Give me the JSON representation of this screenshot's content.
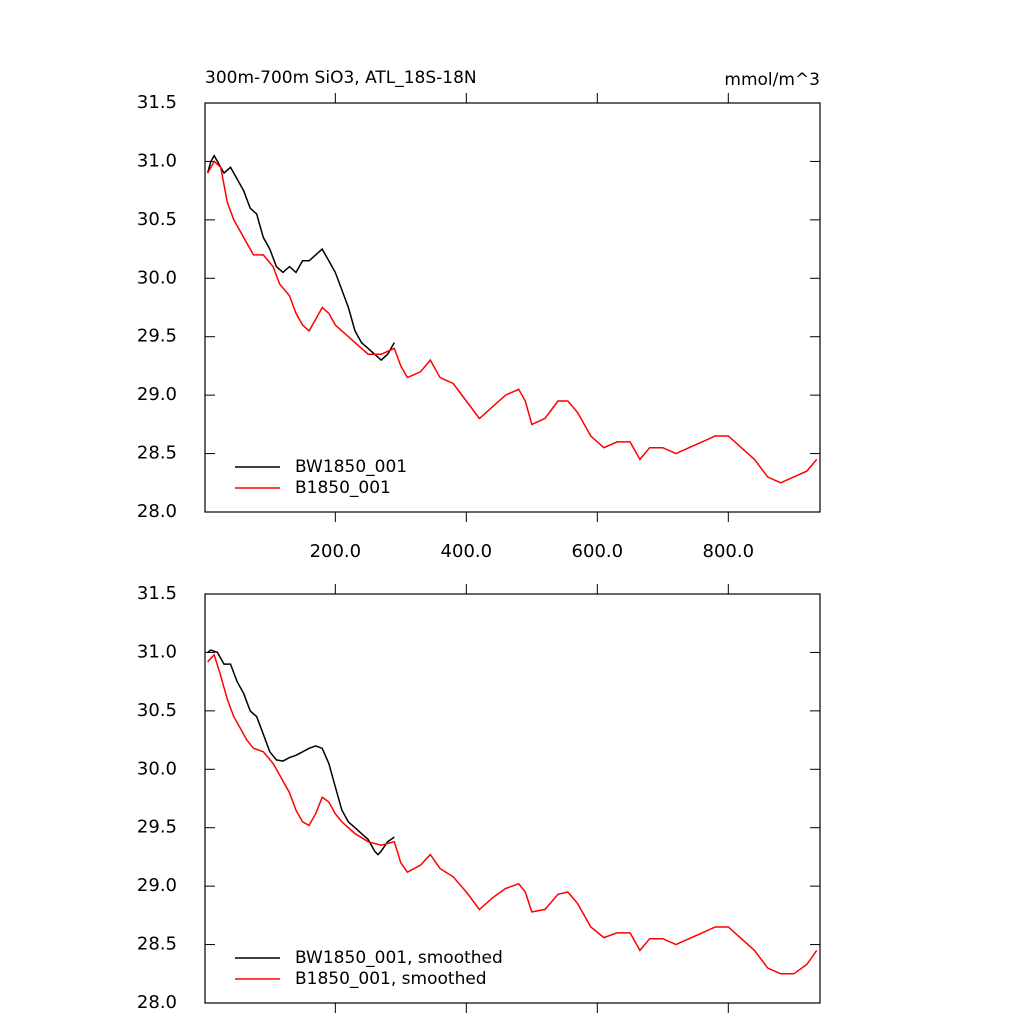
{
  "chart_data": [
    {
      "type": "line",
      "title": "300m-700m SiO3, ATL_18S-18N",
      "units": "mmol/m^3",
      "xlim": [
        1,
        940
      ],
      "xticks": [
        {
          "value": 200,
          "label": "200.0"
        },
        {
          "value": 400,
          "label": "400.0"
        },
        {
          "value": 600,
          "label": "600.0"
        },
        {
          "value": 800,
          "label": "800.0"
        }
      ],
      "xtick_labels": true,
      "ylim": [
        28,
        31.5
      ],
      "yticks": [
        {
          "value": 28,
          "label": "28.0"
        },
        {
          "value": 28.5,
          "label": "28.5"
        },
        {
          "value": 29,
          "label": "29.0"
        },
        {
          "value": 29.5,
          "label": "29.5"
        },
        {
          "value": 30,
          "label": "30.0"
        },
        {
          "value": 30.5,
          "label": "30.5"
        },
        {
          "value": 31,
          "label": "31.0"
        },
        {
          "value": 31.5,
          "label": "31.5"
        }
      ],
      "legend": "lower left",
      "series": [
        {
          "name": "BW1850_001",
          "color": "#000000",
          "x": [
            5,
            10,
            15,
            20,
            30,
            40,
            50,
            60,
            70,
            80,
            90,
            100,
            110,
            120,
            130,
            140,
            150,
            160,
            170,
            180,
            190,
            200,
            210,
            220,
            230,
            240,
            250,
            260,
            270,
            280,
            290
          ],
          "values": [
            30.9,
            31.0,
            31.05,
            31.0,
            30.9,
            30.95,
            30.85,
            30.75,
            30.6,
            30.55,
            30.35,
            30.25,
            30.1,
            30.05,
            30.1,
            30.05,
            30.15,
            30.15,
            30.2,
            30.25,
            30.15,
            30.05,
            29.9,
            29.75,
            29.55,
            29.45,
            29.4,
            29.35,
            29.3,
            29.35,
            29.45
          ]
        },
        {
          "name": "B1850_001",
          "color": "#ff0000",
          "x": [
            5,
            15,
            25,
            35,
            45,
            55,
            65,
            75,
            90,
            105,
            115,
            130,
            140,
            150,
            160,
            170,
            180,
            190,
            200,
            210,
            230,
            250,
            270,
            290,
            300,
            310,
            330,
            345,
            360,
            380,
            400,
            420,
            440,
            460,
            480,
            490,
            500,
            520,
            540,
            555,
            570,
            590,
            610,
            630,
            650,
            665,
            680,
            700,
            720,
            740,
            760,
            780,
            800,
            820,
            840,
            860,
            880,
            900,
            920,
            935
          ],
          "values": [
            30.9,
            31.0,
            30.95,
            30.65,
            30.5,
            30.4,
            30.3,
            30.2,
            30.2,
            30.1,
            29.95,
            29.85,
            29.7,
            29.6,
            29.55,
            29.65,
            29.75,
            29.7,
            29.6,
            29.55,
            29.45,
            29.35,
            29.35,
            29.4,
            29.25,
            29.15,
            29.2,
            29.3,
            29.15,
            29.1,
            28.95,
            28.8,
            28.9,
            29.0,
            29.05,
            28.95,
            28.75,
            28.8,
            28.95,
            28.95,
            28.85,
            28.65,
            28.55,
            28.6,
            28.6,
            28.45,
            28.55,
            28.55,
            28.5,
            28.55,
            28.6,
            28.65,
            28.65,
            28.55,
            28.45,
            28.3,
            28.25,
            28.3,
            28.35,
            28.45
          ]
        }
      ]
    },
    {
      "type": "line",
      "xlim": [
        1,
        940
      ],
      "xticks": [
        200,
        400,
        600,
        800
      ],
      "xtick_labels": false,
      "ylim": [
        28,
        31.5
      ],
      "yticks": [
        {
          "value": 28,
          "label": "28.0"
        },
        {
          "value": 28.5,
          "label": "28.5"
        },
        {
          "value": 29,
          "label": "29.0"
        },
        {
          "value": 29.5,
          "label": "29.5"
        },
        {
          "value": 30,
          "label": "30.0"
        },
        {
          "value": 30.5,
          "label": "30.5"
        },
        {
          "value": 31,
          "label": "31.0"
        },
        {
          "value": 31.5,
          "label": "31.5"
        }
      ],
      "legend": "lower left",
      "series": [
        {
          "name": "BW1850_001, smoothed",
          "color": "#000000",
          "x": [
            5,
            10,
            20,
            30,
            40,
            50,
            60,
            70,
            80,
            90,
            100,
            110,
            120,
            130,
            140,
            150,
            160,
            170,
            180,
            190,
            200,
            210,
            220,
            230,
            240,
            250,
            260,
            265,
            270,
            280,
            290
          ],
          "values": [
            31.0,
            31.02,
            31.0,
            30.9,
            30.9,
            30.75,
            30.65,
            30.5,
            30.45,
            30.3,
            30.15,
            30.08,
            30.07,
            30.1,
            30.12,
            30.15,
            30.18,
            30.2,
            30.18,
            30.05,
            29.85,
            29.65,
            29.55,
            29.5,
            29.45,
            29.4,
            29.3,
            29.27,
            29.3,
            29.38,
            29.42
          ]
        },
        {
          "name": "B1850_001, smoothed",
          "color": "#ff0000",
          "x": [
            5,
            15,
            25,
            35,
            45,
            55,
            65,
            75,
            90,
            105,
            115,
            130,
            140,
            150,
            160,
            170,
            180,
            190,
            200,
            210,
            230,
            250,
            270,
            290,
            300,
            310,
            330,
            345,
            360,
            380,
            400,
            420,
            440,
            460,
            480,
            490,
            500,
            520,
            540,
            555,
            570,
            590,
            610,
            630,
            650,
            665,
            680,
            700,
            720,
            740,
            760,
            780,
            800,
            820,
            840,
            860,
            880,
            900,
            920,
            935
          ],
          "values": [
            30.92,
            30.98,
            30.8,
            30.6,
            30.45,
            30.35,
            30.25,
            30.18,
            30.15,
            30.05,
            29.95,
            29.8,
            29.65,
            29.55,
            29.52,
            29.62,
            29.76,
            29.72,
            29.62,
            29.55,
            29.45,
            29.38,
            29.35,
            29.38,
            29.2,
            29.12,
            29.18,
            29.27,
            29.15,
            29.08,
            28.95,
            28.8,
            28.9,
            28.98,
            29.02,
            28.95,
            28.78,
            28.8,
            28.93,
            28.95,
            28.85,
            28.65,
            28.56,
            28.6,
            28.6,
            28.45,
            28.55,
            28.55,
            28.5,
            28.55,
            28.6,
            28.65,
            28.65,
            28.55,
            28.45,
            28.3,
            28.25,
            28.25,
            28.33,
            28.45
          ]
        }
      ]
    }
  ]
}
